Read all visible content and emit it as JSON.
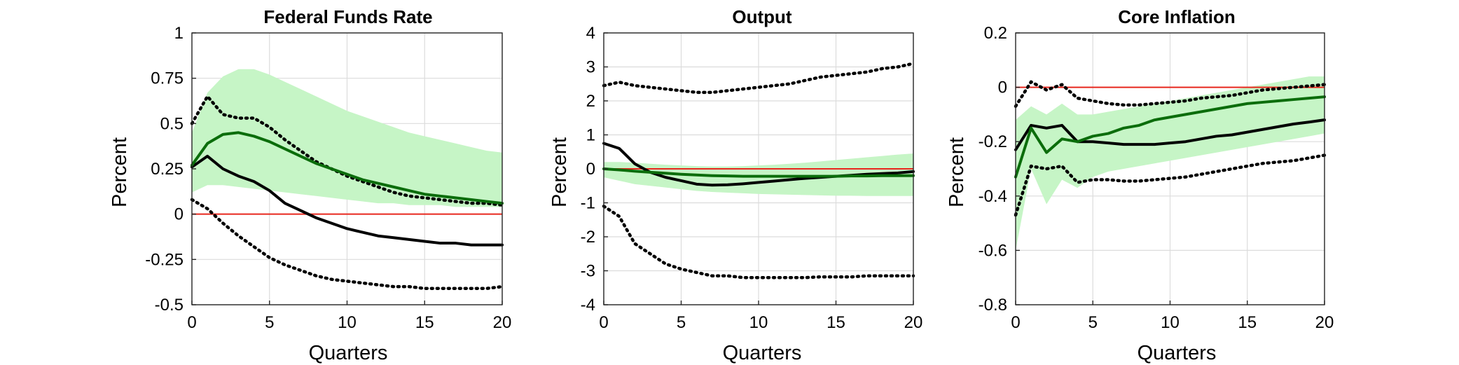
{
  "colors": {
    "band": "#c6f5c6",
    "median": "#0b6d0b",
    "point": "#000000",
    "dotted": "#000000",
    "zero_line": "#e8271e",
    "grid": "#dcdcdc"
  },
  "chart_data": [
    {
      "type": "line",
      "title": "Federal Funds Rate",
      "xlabel": "Quarters",
      "ylabel": "Percent",
      "xlim": [
        0,
        20
      ],
      "ylim": [
        -0.5,
        1
      ],
      "grid": true,
      "xticks": [
        0,
        5,
        10,
        15,
        20
      ],
      "xtick_labels": [
        "0",
        "5",
        "10",
        "15",
        "20"
      ],
      "yticks": [
        -0.5,
        -0.25,
        0,
        0.25,
        0.5,
        0.75,
        1
      ],
      "ytick_labels": [
        "-0.5",
        "-0.25",
        "0",
        "0.25",
        "0.5",
        "0.75",
        "1"
      ],
      "reference_line": 0,
      "x": [
        0,
        1,
        2,
        3,
        4,
        5,
        6,
        7,
        8,
        9,
        10,
        11,
        12,
        13,
        14,
        15,
        16,
        17,
        18,
        19,
        20
      ],
      "band": {
        "lower": [
          0.12,
          0.16,
          0.16,
          0.15,
          0.14,
          0.13,
          0.12,
          0.11,
          0.1,
          0.09,
          0.08,
          0.07,
          0.06,
          0.06,
          0.05,
          0.05,
          0.05,
          0.04,
          0.04,
          0.04,
          0.04
        ],
        "upper": [
          0.45,
          0.67,
          0.76,
          0.8,
          0.8,
          0.77,
          0.73,
          0.69,
          0.65,
          0.61,
          0.57,
          0.54,
          0.51,
          0.48,
          0.45,
          0.43,
          0.41,
          0.39,
          0.37,
          0.35,
          0.34
        ]
      },
      "series": [
        {
          "style": "median",
          "values": [
            0.27,
            0.39,
            0.44,
            0.45,
            0.43,
            0.4,
            0.36,
            0.32,
            0.28,
            0.25,
            0.22,
            0.19,
            0.17,
            0.15,
            0.13,
            0.11,
            0.1,
            0.09,
            0.08,
            0.07,
            0.06
          ]
        },
        {
          "style": "point",
          "values": [
            0.26,
            0.32,
            0.25,
            0.21,
            0.18,
            0.13,
            0.06,
            0.02,
            -0.02,
            -0.05,
            -0.08,
            -0.1,
            -0.12,
            -0.13,
            -0.14,
            -0.15,
            -0.16,
            -0.16,
            -0.17,
            -0.17,
            -0.17
          ]
        },
        {
          "style": "dotted",
          "values": [
            0.5,
            0.65,
            0.55,
            0.53,
            0.53,
            0.48,
            0.41,
            0.35,
            0.29,
            0.25,
            0.21,
            0.18,
            0.15,
            0.12,
            0.1,
            0.09,
            0.08,
            0.07,
            0.06,
            0.06,
            0.05
          ]
        },
        {
          "style": "dotted",
          "values": [
            0.08,
            0.03,
            -0.05,
            -0.12,
            -0.18,
            -0.24,
            -0.28,
            -0.31,
            -0.34,
            -0.36,
            -0.37,
            -0.38,
            -0.39,
            -0.4,
            -0.4,
            -0.41,
            -0.41,
            -0.41,
            -0.41,
            -0.41,
            -0.4
          ]
        }
      ]
    },
    {
      "type": "line",
      "title": "Output",
      "xlabel": "Quarters",
      "ylabel": "Percent",
      "xlim": [
        0,
        20
      ],
      "ylim": [
        -4,
        4
      ],
      "grid": true,
      "xticks": [
        0,
        5,
        10,
        15,
        20
      ],
      "xtick_labels": [
        "0",
        "5",
        "10",
        "15",
        "20"
      ],
      "yticks": [
        -4,
        -3,
        -2,
        -1,
        0,
        1,
        2,
        3,
        4
      ],
      "ytick_labels": [
        "-4",
        "-3",
        "-2",
        "-1",
        "0",
        "1",
        "2",
        "3",
        "4"
      ],
      "reference_line": 0,
      "x": [
        0,
        1,
        2,
        3,
        4,
        5,
        6,
        7,
        8,
        9,
        10,
        11,
        12,
        13,
        14,
        15,
        16,
        17,
        18,
        19,
        20
      ],
      "band": {
        "lower": [
          -0.25,
          -0.35,
          -0.45,
          -0.5,
          -0.55,
          -0.6,
          -0.65,
          -0.68,
          -0.7,
          -0.72,
          -0.74,
          -0.75,
          -0.76,
          -0.77,
          -0.78,
          -0.79,
          -0.79,
          -0.8,
          -0.8,
          -0.8,
          -0.8
        ],
        "upper": [
          0.2,
          0.2,
          0.18,
          0.15,
          0.12,
          0.1,
          0.08,
          0.07,
          0.07,
          0.08,
          0.1,
          0.12,
          0.15,
          0.18,
          0.22,
          0.26,
          0.3,
          0.34,
          0.38,
          0.42,
          0.45
        ]
      },
      "series": [
        {
          "style": "median",
          "values": [
            0,
            -0.03,
            -0.07,
            -0.1,
            -0.13,
            -0.16,
            -0.18,
            -0.2,
            -0.21,
            -0.22,
            -0.22,
            -0.22,
            -0.22,
            -0.22,
            -0.22,
            -0.22,
            -0.21,
            -0.21,
            -0.2,
            -0.2,
            -0.2
          ]
        },
        {
          "style": "point",
          "values": [
            0.75,
            0.6,
            0.15,
            -0.1,
            -0.25,
            -0.35,
            -0.45,
            -0.48,
            -0.47,
            -0.44,
            -0.4,
            -0.36,
            -0.32,
            -0.28,
            -0.25,
            -0.22,
            -0.19,
            -0.16,
            -0.14,
            -0.12,
            -0.08
          ]
        },
        {
          "style": "dotted",
          "values": [
            2.45,
            2.55,
            2.45,
            2.4,
            2.35,
            2.3,
            2.25,
            2.25,
            2.3,
            2.35,
            2.4,
            2.45,
            2.5,
            2.6,
            2.7,
            2.75,
            2.8,
            2.85,
            2.95,
            3.0,
            3.1
          ]
        },
        {
          "style": "dotted",
          "values": [
            -1.1,
            -1.4,
            -2.2,
            -2.5,
            -2.8,
            -2.95,
            -3.05,
            -3.15,
            -3.15,
            -3.2,
            -3.2,
            -3.2,
            -3.2,
            -3.2,
            -3.18,
            -3.18,
            -3.18,
            -3.15,
            -3.15,
            -3.15,
            -3.15
          ]
        }
      ]
    },
    {
      "type": "line",
      "title": "Core Inflation",
      "xlabel": "Quarters",
      "ylabel": "Percent",
      "xlim": [
        0,
        20
      ],
      "ylim": [
        -0.8,
        0.2
      ],
      "grid": true,
      "xticks": [
        0,
        5,
        10,
        15,
        20
      ],
      "xtick_labels": [
        "0",
        "5",
        "10",
        "15",
        "20"
      ],
      "yticks": [
        -0.8,
        -0.6,
        -0.4,
        -0.2,
        0,
        0.2
      ],
      "ytick_labels": [
        "-0.8",
        "-0.6",
        "-0.4",
        "-0.2",
        "0",
        "0.2"
      ],
      "reference_line": 0,
      "x": [
        0,
        1,
        2,
        3,
        4,
        5,
        6,
        7,
        8,
        9,
        10,
        11,
        12,
        13,
        14,
        15,
        16,
        17,
        18,
        19,
        20
      ],
      "band": {
        "lower": [
          -0.6,
          -0.3,
          -0.43,
          -0.34,
          -0.37,
          -0.33,
          -0.31,
          -0.3,
          -0.29,
          -0.28,
          -0.27,
          -0.26,
          -0.25,
          -0.24,
          -0.23,
          -0.22,
          -0.21,
          -0.2,
          -0.19,
          -0.18,
          -0.17
        ],
        "upper": [
          -0.12,
          -0.07,
          -0.1,
          -0.06,
          -0.1,
          -0.1,
          -0.09,
          -0.08,
          -0.07,
          -0.06,
          -0.05,
          -0.04,
          -0.03,
          -0.02,
          -0.01,
          0,
          0.01,
          0.02,
          0.03,
          0.04,
          0.04
        ]
      },
      "series": [
        {
          "style": "median",
          "values": [
            -0.33,
            -0.15,
            -0.24,
            -0.19,
            -0.2,
            -0.18,
            -0.17,
            -0.15,
            -0.14,
            -0.12,
            -0.11,
            -0.1,
            -0.09,
            -0.08,
            -0.07,
            -0.06,
            -0.055,
            -0.05,
            -0.045,
            -0.04,
            -0.035
          ]
        },
        {
          "style": "point",
          "values": [
            -0.23,
            -0.14,
            -0.15,
            -0.14,
            -0.2,
            -0.2,
            -0.205,
            -0.21,
            -0.21,
            -0.21,
            -0.205,
            -0.2,
            -0.19,
            -0.18,
            -0.175,
            -0.165,
            -0.155,
            -0.145,
            -0.135,
            -0.128,
            -0.12
          ]
        },
        {
          "style": "dotted",
          "values": [
            -0.07,
            0.02,
            -0.01,
            0.01,
            -0.04,
            -0.05,
            -0.06,
            -0.065,
            -0.065,
            -0.06,
            -0.055,
            -0.05,
            -0.04,
            -0.035,
            -0.03,
            -0.02,
            -0.01,
            -0.005,
            0,
            0.005,
            0.01
          ]
        },
        {
          "style": "dotted",
          "values": [
            -0.47,
            -0.29,
            -0.3,
            -0.29,
            -0.35,
            -0.34,
            -0.34,
            -0.345,
            -0.345,
            -0.34,
            -0.335,
            -0.33,
            -0.32,
            -0.31,
            -0.3,
            -0.29,
            -0.28,
            -0.275,
            -0.27,
            -0.26,
            -0.25
          ]
        }
      ]
    }
  ]
}
